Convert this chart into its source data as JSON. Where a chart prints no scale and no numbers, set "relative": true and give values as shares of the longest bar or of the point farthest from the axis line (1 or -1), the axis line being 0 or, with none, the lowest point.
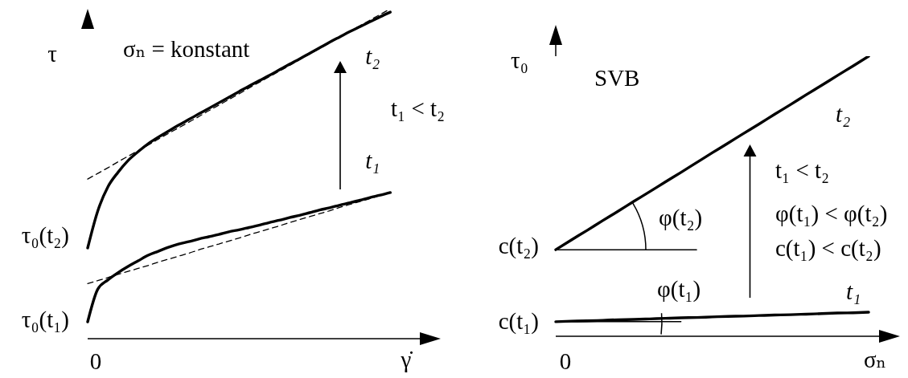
{
  "chart_data": [
    {
      "type": "line",
      "xlabel": "γ̇",
      "ylabel": "τ",
      "relative": true,
      "marker": "none",
      "line_style": "solid",
      "categories": [
        null,
        null,
        null,
        null,
        null,
        null,
        null,
        null,
        null,
        null,
        null,
        null,
        null,
        null,
        null,
        null,
        null,
        null,
        null,
        null,
        null,
        null,
        null,
        null,
        null,
        null,
        null,
        null,
        null,
        null,
        null,
        null,
        null,
        null,
        null,
        null
      ],
      "series": [
        {
          "name": "t₂",
          "color": "#000000",
          "values": [
            0.275,
            0.387,
            0.46,
            0.504,
            0.54,
            0.567,
            0.591,
            0.611,
            0.629,
            0.647,
            0.664,
            0.681,
            0.698,
            0.715,
            0.732,
            0.749,
            0.766,
            0.782,
            0.798,
            0.815,
            0.832,
            0.848,
            0.865,
            0.882,
            0.899,
            0.915,
            0.931,
            0.946,
            0.961,
            0.976,
            0.99,
            null,
            null,
            null,
            null,
            null
          ]
        },
        {
          "color": "#000000",
          "line_style": "dashed",
          "values": [
            0.484,
            0.501,
            0.518,
            0.536,
            0.553,
            0.57,
            0.587,
            0.605,
            0.622,
            0.639,
            0.656,
            0.673,
            0.691,
            0.708,
            0.725,
            0.742,
            0.76,
            0.777,
            0.794,
            0.811,
            0.828,
            0.846,
            0.863,
            0.88,
            0.897,
            0.915,
            0.932,
            0.949,
            0.966,
            0.983,
            1.0,
            null,
            null,
            null,
            null,
            null
          ]
        },
        {
          "name": "t₁",
          "color": "#000000",
          "values": [
            0.051,
            0.15,
            0.178,
            0.2,
            0.219,
            0.236,
            0.253,
            0.265,
            0.277,
            0.287,
            0.294,
            0.302,
            0.309,
            0.316,
            0.324,
            0.33,
            0.337,
            0.344,
            0.352,
            0.359,
            0.367,
            0.374,
            0.382,
            0.39,
            0.397,
            0.405,
            0.412,
            0.42,
            0.428,
            0.435,
            0.443,
            null,
            null,
            null,
            null,
            null
          ]
        },
        {
          "color": "#000000",
          "line_style": "dashed",
          "values": [
            0.167,
            0.176,
            0.185,
            0.195,
            0.204,
            0.213,
            0.222,
            0.232,
            0.241,
            0.25,
            0.259,
            0.269,
            0.278,
            0.287,
            0.296,
            0.305,
            0.315,
            0.324,
            0.333,
            0.342,
            0.352,
            0.361,
            0.37,
            0.379,
            0.388,
            0.398,
            0.407,
            0.416,
            0.425,
            0.435,
            null,
            null,
            null,
            null,
            null,
            null
          ]
        }
      ],
      "annotations": [
        "σₙ = konstant",
        "t₁ < t₂",
        "0",
        "τ₀(t₂)",
        "τ₀(t₁)"
      ]
    },
    {
      "type": "line",
      "xlabel": "σₙ",
      "ylabel": "τ₀",
      "relative": true,
      "marker": "none",
      "line_style": "solid",
      "categories": [
        null,
        null,
        null,
        null,
        null,
        null,
        null,
        null,
        null,
        null,
        null,
        null,
        null,
        null,
        null,
        null,
        null,
        null,
        null,
        null,
        null,
        null,
        null
      ],
      "series": [
        {
          "name": "t₂",
          "color": "#000000",
          "values": [
            0.309,
            0.344,
            0.378,
            0.413,
            0.447,
            0.482,
            0.516,
            0.551,
            0.585,
            0.62,
            0.655,
            0.689,
            0.724,
            0.758,
            0.793,
            0.827,
            0.862,
            0.896,
            0.931,
            0.965,
            1.0,
            null,
            null
          ]
        },
        {
          "name": "t₁",
          "color": "#000000",
          "values": [
            0.052,
            0.054,
            0.055,
            0.057,
            0.059,
            0.06,
            0.062,
            0.064,
            0.066,
            0.067,
            0.069,
            0.071,
            0.072,
            0.074,
            0.076,
            0.077,
            0.079,
            0.081,
            0.083,
            0.084,
            0.086,
            null,
            null
          ]
        },
        {
          "color": "#000000",
          "values": [
            0.309,
            0.309,
            0.309,
            0.309,
            0.309,
            0.309,
            0.309,
            0.309,
            0.309,
            0.309,
            null,
            null,
            null,
            null,
            null,
            null,
            null,
            null,
            null,
            null,
            null,
            null,
            null
          ]
        },
        {
          "color": "#000000",
          "values": [
            0.052,
            0.052,
            0.052,
            0.052,
            0.052,
            0.052,
            0.052,
            0.052,
            0.052,
            null,
            null,
            null,
            null,
            null,
            null,
            null,
            null,
            null,
            null,
            null,
            null,
            null,
            null
          ]
        }
      ],
      "annotations": [
        "SVB",
        "t₁ < t₂",
        "φ(t₁) < φ(t₂)",
        "c(t₁) < c(t₂)",
        "φ(t₂)",
        "φ(t₁)",
        "0",
        "c(t₂)",
        "c(t₁)"
      ]
    }
  ]
}
